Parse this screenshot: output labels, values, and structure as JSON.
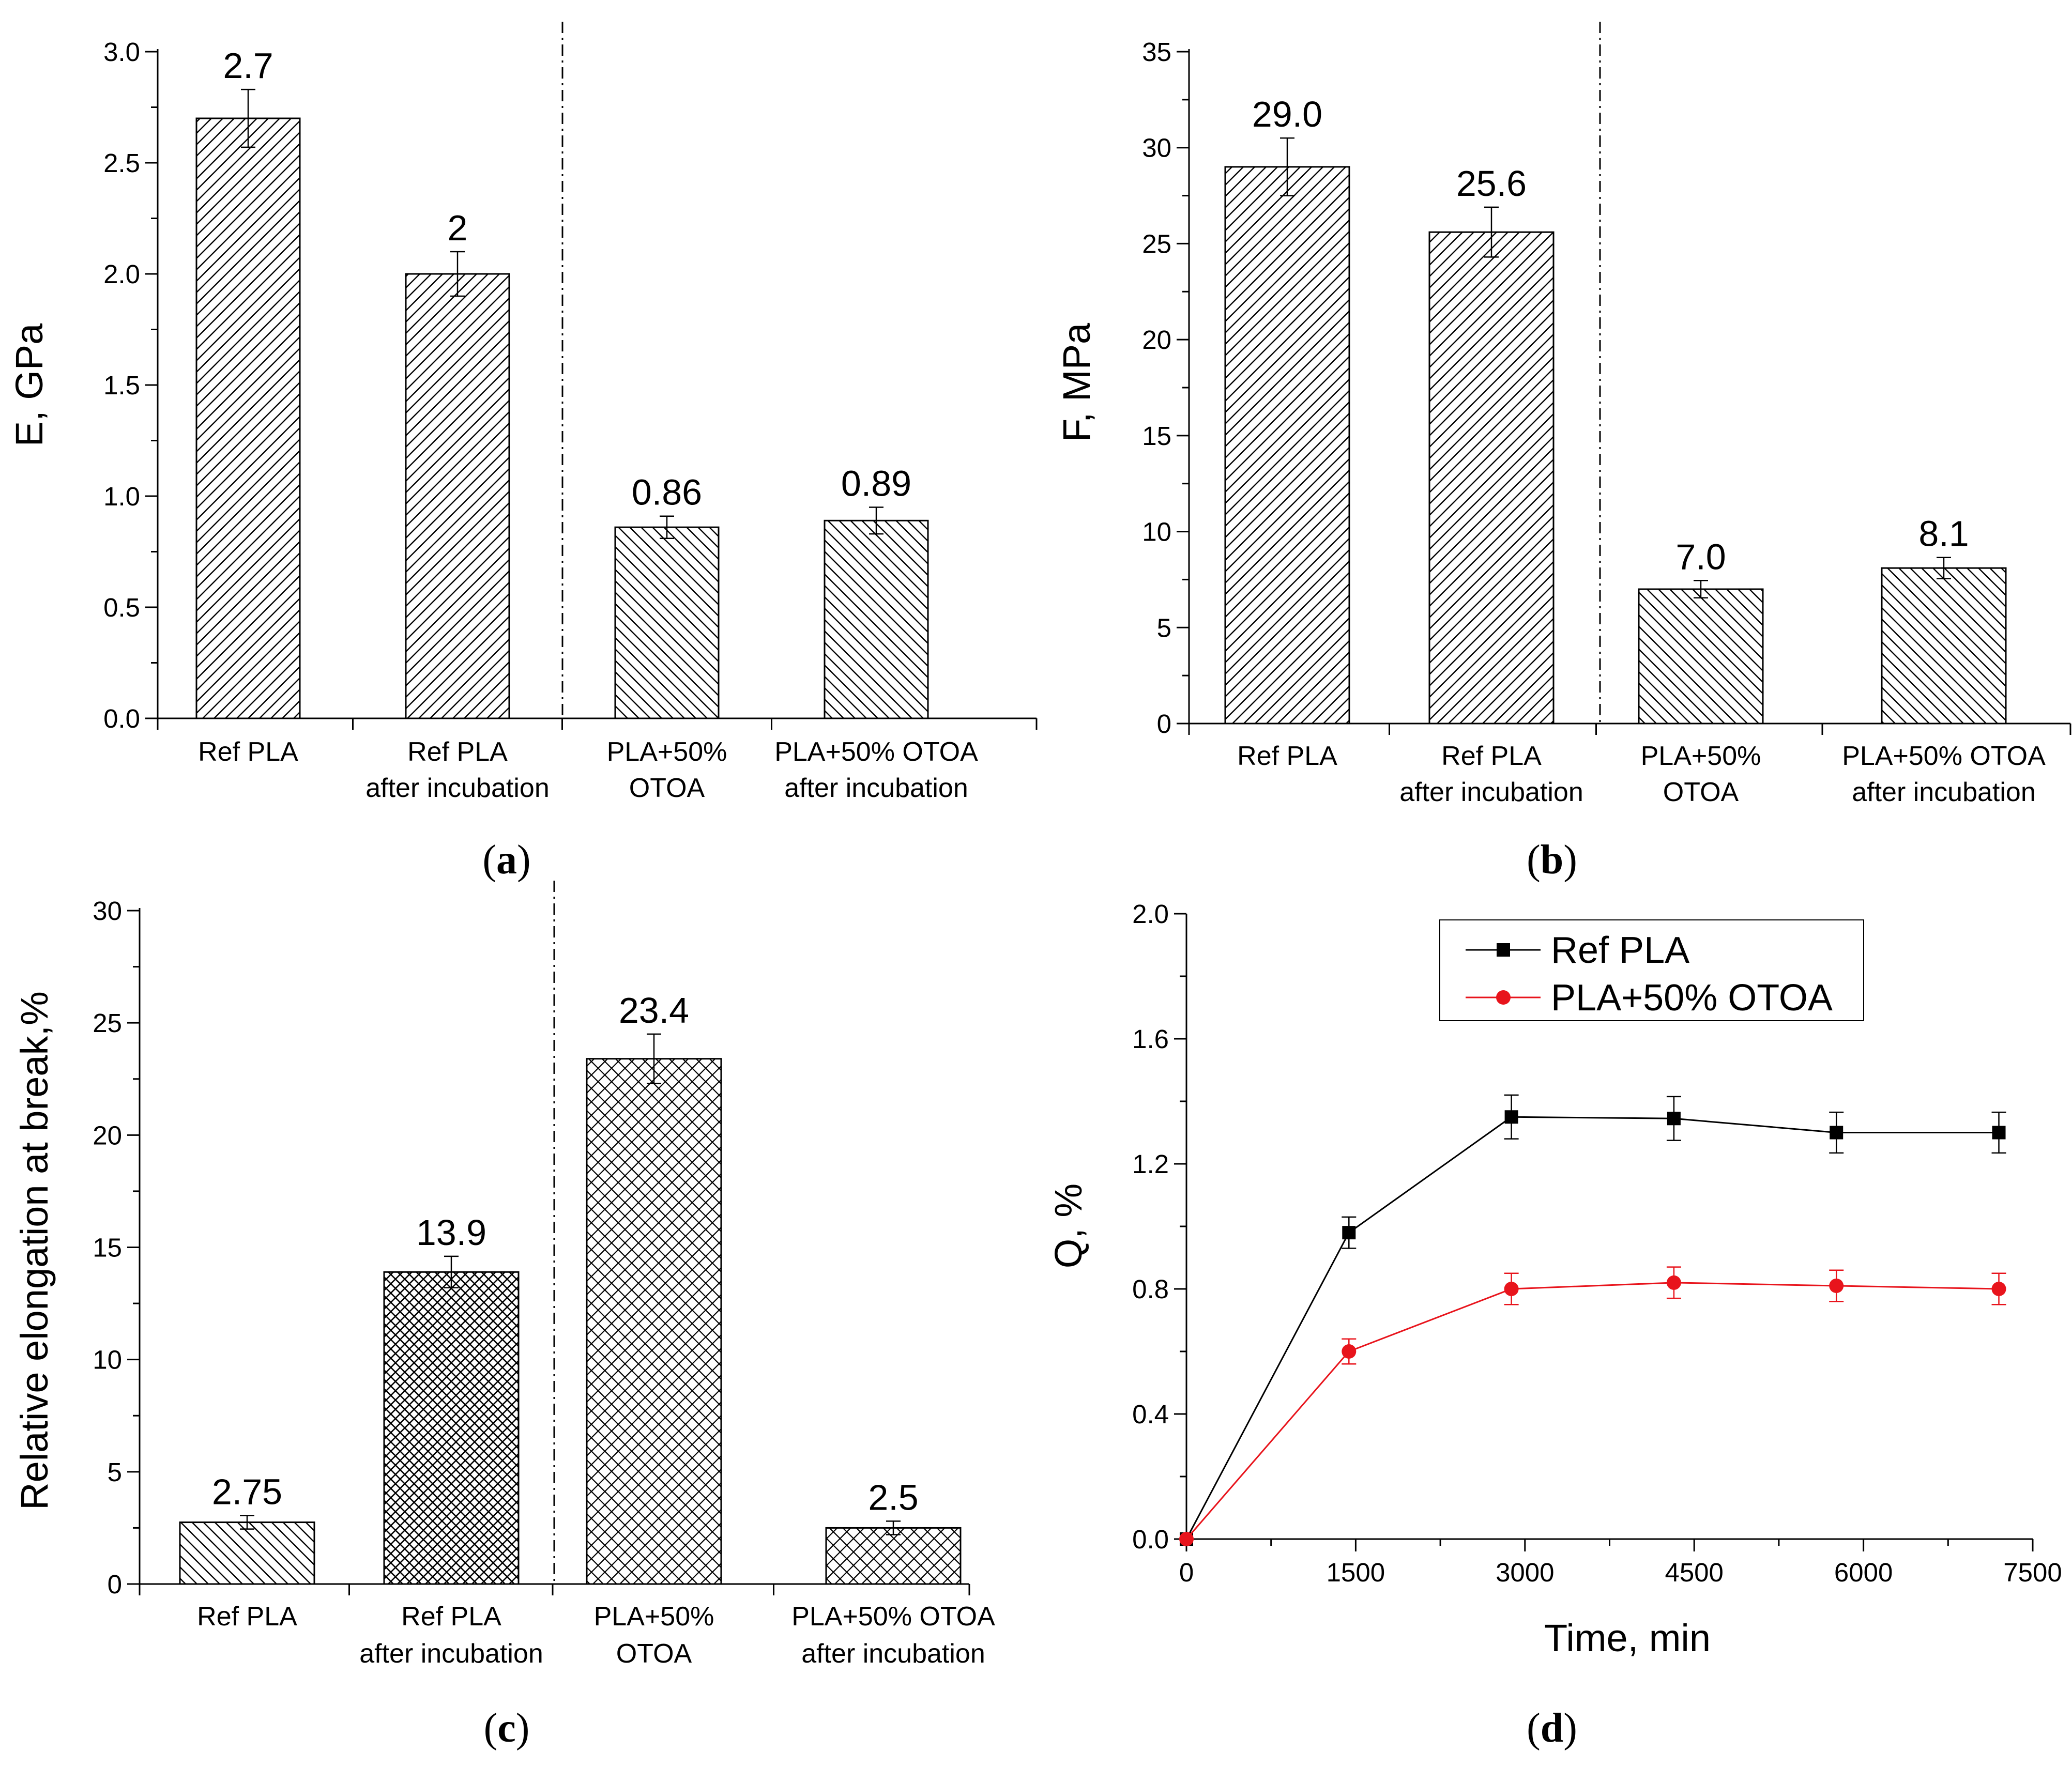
{
  "chart_data": [
    {
      "panel": "a",
      "type": "bar",
      "ylabel": "E, GPa",
      "xlabel": "",
      "ylim": [
        0,
        3.0
      ],
      "yticks": [
        "0.0",
        "0.5",
        "1.0",
        "1.5",
        "2.0",
        "2.5",
        "3.0"
      ],
      "divider_after_index": 1,
      "categories": [
        [
          "Ref PLA"
        ],
        [
          "Ref PLA",
          "after incubation"
        ],
        [
          "PLA+50%",
          "OTOA"
        ],
        [
          "PLA+50% OTOA",
          "after incubation"
        ]
      ],
      "values": [
        2.7,
        2.0,
        0.86,
        0.89
      ],
      "errors": [
        0.13,
        0.1,
        0.05,
        0.06
      ],
      "value_labels": [
        "2.7",
        "2",
        "0.86",
        "0.89"
      ],
      "patterns": [
        "hatch",
        "hatch",
        "hatch-rev",
        "hatch-rev"
      ],
      "caption_open": "(",
      "caption_letter": "a",
      "caption_close": ")"
    },
    {
      "panel": "b",
      "type": "bar",
      "ylabel": "F, MPa",
      "xlabel": "",
      "ylim": [
        0,
        35
      ],
      "yticks": [
        "0",
        "5",
        "10",
        "15",
        "20",
        "25",
        "30",
        "35"
      ],
      "divider_after_index": 1,
      "categories": [
        [
          "Ref PLA"
        ],
        [
          "Ref PLA",
          "after incubation"
        ],
        [
          "PLA+50%",
          "OTOA"
        ],
        [
          "PLA+50% OTOA",
          "after incubation"
        ]
      ],
      "values": [
        29.0,
        25.6,
        7.0,
        8.1
      ],
      "errors": [
        1.5,
        1.3,
        0.45,
        0.55
      ],
      "value_labels": [
        "29.0",
        "25.6",
        "7.0",
        "8.1"
      ],
      "patterns": [
        "hatch",
        "hatch",
        "hatch-rev",
        "hatch-rev"
      ],
      "caption_open": "(",
      "caption_letter": "b",
      "caption_close": ")"
    },
    {
      "panel": "c",
      "type": "bar",
      "ylabel": "Relative elongation at break,%",
      "xlabel": "",
      "ylim": [
        0,
        30
      ],
      "yticks": [
        "0",
        "5",
        "10",
        "15",
        "20",
        "25",
        "30"
      ],
      "divider_after_index": 1,
      "categories": [
        [
          "Ref PLA"
        ],
        [
          "Ref PLA",
          "after incubation"
        ],
        [
          "PLA+50%",
          "OTOA"
        ],
        [
          "PLA+50% OTOA",
          "after incubation"
        ]
      ],
      "values": [
        2.75,
        13.9,
        23.4,
        2.5
      ],
      "errors": [
        0.3,
        0.7,
        1.1,
        0.3
      ],
      "value_labels": [
        "2.75",
        "13.9",
        "23.4",
        "2.5"
      ],
      "patterns": [
        "hatch-rev",
        "cross-dense",
        "cross",
        "cross"
      ],
      "caption_open": "(",
      "caption_letter": "c",
      "caption_close": ")"
    },
    {
      "panel": "d",
      "type": "line",
      "ylabel": "Q, %",
      "xlabel": "Time, min",
      "xlim": [
        0,
        7500
      ],
      "ylim": [
        0,
        2.0
      ],
      "xticks": [
        "0",
        "1500",
        "3000",
        "4500",
        "6000",
        "7500"
      ],
      "yticks": [
        "0.0",
        "0.4",
        "0.8",
        "1.2",
        "1.6",
        "2.0"
      ],
      "x": [
        0,
        1440,
        2880,
        4320,
        5760,
        7200
      ],
      "series": [
        {
          "name": "Ref PLA",
          "color": "#000000",
          "marker": "square",
          "values": [
            0.0,
            0.98,
            1.35,
            1.345,
            1.3,
            1.3
          ],
          "errors": [
            0,
            0.05,
            0.07,
            0.07,
            0.065,
            0.065
          ]
        },
        {
          "name": "PLA+50% OTOA",
          "color": "#e8141c",
          "marker": "circle",
          "values": [
            0.0,
            0.6,
            0.8,
            0.82,
            0.81,
            0.8
          ],
          "errors": [
            0,
            0.04,
            0.05,
            0.05,
            0.05,
            0.05
          ]
        }
      ],
      "legend_position": "top-right",
      "caption_open": "(",
      "caption_letter": "d",
      "caption_close": ")"
    }
  ]
}
